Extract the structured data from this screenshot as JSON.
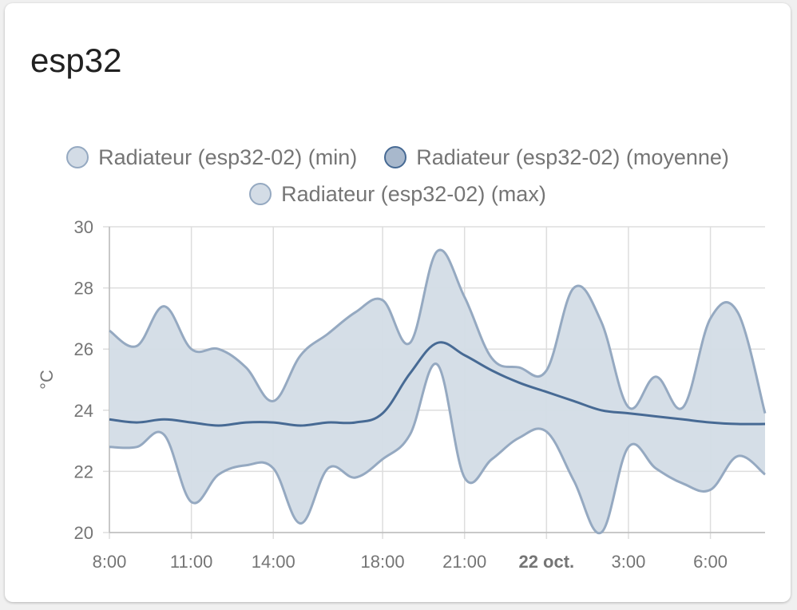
{
  "card": {
    "title": "esp32"
  },
  "colors": {
    "min_fill": "#d3dce6",
    "min_stroke": "#95a9c1",
    "mean_fill": "#a8b8cc",
    "mean_stroke": "#476a94",
    "max_fill": "#d3dce6",
    "max_stroke": "#95a9c1",
    "band_fill": "#d3dce6",
    "grid": "#dddddd",
    "axis": "#bbbbbb"
  },
  "chart_data": {
    "type": "area",
    "title": "esp32",
    "ylabel": "°C",
    "xlabel": "",
    "ylim": [
      20,
      30
    ],
    "yticks": [
      20,
      22,
      24,
      26,
      28,
      30
    ],
    "xlim": [
      0,
      24
    ],
    "xticks": [
      {
        "x": 0,
        "label": "8:00",
        "bold": false
      },
      {
        "x": 3,
        "label": "11:00",
        "bold": false
      },
      {
        "x": 6,
        "label": "14:00",
        "bold": false
      },
      {
        "x": 10,
        "label": "18:00",
        "bold": false
      },
      {
        "x": 13,
        "label": "21:00",
        "bold": false
      },
      {
        "x": 16,
        "label": "22 oct.",
        "bold": true
      },
      {
        "x": 19,
        "label": "3:00",
        "bold": false
      },
      {
        "x": 22,
        "label": "6:00",
        "bold": false
      }
    ],
    "grid": true,
    "legend_position": "top",
    "series": [
      {
        "name": "Radiateur (esp32-02) (min)",
        "points": [
          [
            0,
            22.8
          ],
          [
            1,
            22.8
          ],
          [
            2,
            23.2
          ],
          [
            3,
            21.0
          ],
          [
            4,
            21.9
          ],
          [
            5,
            22.2
          ],
          [
            6,
            22.1
          ],
          [
            7,
            20.3
          ],
          [
            8,
            22.1
          ],
          [
            9,
            21.8
          ],
          [
            10,
            22.4
          ],
          [
            11,
            23.2
          ],
          [
            12,
            25.5
          ],
          [
            13,
            21.8
          ],
          [
            14,
            22.4
          ],
          [
            15,
            23.1
          ],
          [
            16,
            23.3
          ],
          [
            17,
            21.7
          ],
          [
            18,
            20.0
          ],
          [
            19,
            22.8
          ],
          [
            20,
            22.1
          ],
          [
            21,
            21.6
          ],
          [
            22,
            21.4
          ],
          [
            23,
            22.5
          ],
          [
            24,
            21.9
          ]
        ]
      },
      {
        "name": "Radiateur (esp32-02) (moyenne)",
        "points": [
          [
            0,
            23.7
          ],
          [
            1,
            23.6
          ],
          [
            2,
            23.7
          ],
          [
            3,
            23.6
          ],
          [
            4,
            23.5
          ],
          [
            5,
            23.6
          ],
          [
            6,
            23.6
          ],
          [
            7,
            23.5
          ],
          [
            8,
            23.6
          ],
          [
            9,
            23.6
          ],
          [
            10,
            23.9
          ],
          [
            11,
            25.2
          ],
          [
            12,
            26.2
          ],
          [
            13,
            25.8
          ],
          [
            14,
            25.3
          ],
          [
            15,
            24.9
          ],
          [
            16,
            24.6
          ],
          [
            17,
            24.3
          ],
          [
            18,
            24.0
          ],
          [
            19,
            23.9
          ],
          [
            20,
            23.8
          ],
          [
            21,
            23.7
          ],
          [
            22,
            23.6
          ],
          [
            23,
            23.55
          ],
          [
            24,
            23.55
          ]
        ]
      },
      {
        "name": "Radiateur (esp32-02) (max)",
        "points": [
          [
            0,
            26.6
          ],
          [
            1,
            26.1
          ],
          [
            2,
            27.4
          ],
          [
            3,
            26.0
          ],
          [
            4,
            26.0
          ],
          [
            5,
            25.4
          ],
          [
            6,
            24.3
          ],
          [
            7,
            25.8
          ],
          [
            8,
            26.5
          ],
          [
            9,
            27.2
          ],
          [
            10,
            27.6
          ],
          [
            11,
            26.2
          ],
          [
            12,
            29.2
          ],
          [
            13,
            27.7
          ],
          [
            14,
            25.7
          ],
          [
            15,
            25.4
          ],
          [
            16,
            25.3
          ],
          [
            17,
            28.0
          ],
          [
            18,
            26.9
          ],
          [
            19,
            24.1
          ],
          [
            20,
            25.1
          ],
          [
            21,
            24.1
          ],
          [
            22,
            27.0
          ],
          [
            23,
            27.2
          ],
          [
            24,
            23.9
          ]
        ]
      }
    ]
  }
}
